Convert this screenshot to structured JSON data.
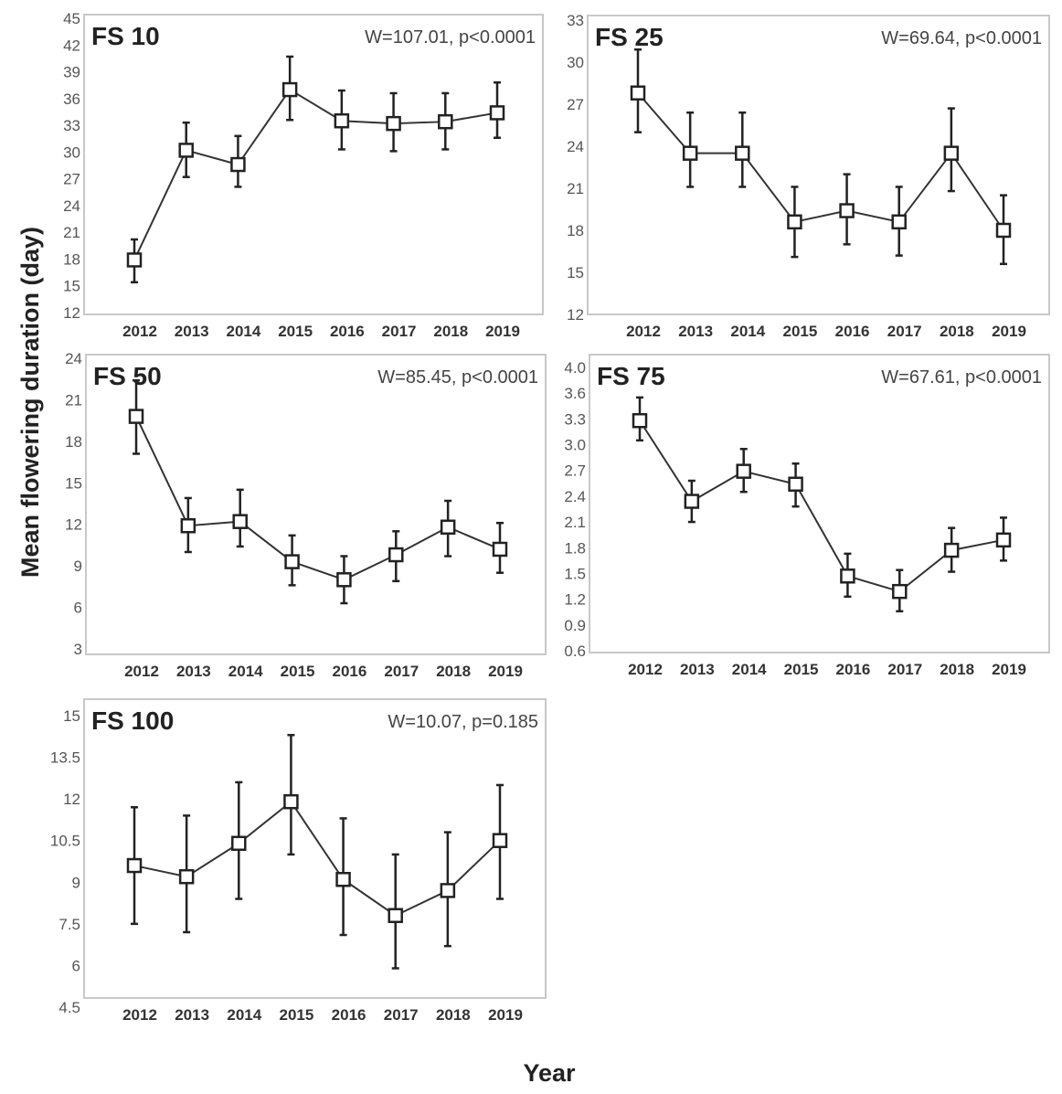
{
  "figure": {
    "ylabel": "Mean flowering duration (day)",
    "xlabel": "Year"
  },
  "chart_data": [
    {
      "type": "line",
      "title": "FS 10",
      "annotation": "W=107.01, p<0.0001",
      "categories": [
        "2012",
        "2013",
        "2014",
        "2015",
        "2016",
        "2017",
        "2018",
        "2019"
      ],
      "values": [
        17.9,
        30.2,
        28.6,
        37.0,
        33.5,
        33.2,
        33.4,
        34.4
      ],
      "error_low": [
        15.4,
        27.2,
        26.1,
        33.6,
        30.3,
        30.1,
        30.3,
        31.6
      ],
      "error_high": [
        20.2,
        33.3,
        31.8,
        40.7,
        36.9,
        36.6,
        36.6,
        37.8
      ],
      "yticks": [
        "12",
        "15",
        "18",
        "21",
        "24",
        "27",
        "30",
        "33",
        "36",
        "39",
        "42",
        "45"
      ],
      "ylim": [
        12,
        45
      ],
      "marker": "open-square",
      "grid": false
    },
    {
      "type": "line",
      "title": "FS 25",
      "annotation": "W=69.64, p<0.0001",
      "categories": [
        "2012",
        "2013",
        "2014",
        "2015",
        "2016",
        "2017",
        "2018",
        "2019"
      ],
      "values": [
        27.8,
        23.5,
        23.5,
        18.6,
        19.4,
        18.6,
        23.5,
        18.0
      ],
      "error_low": [
        25.0,
        21.1,
        21.1,
        16.1,
        17.0,
        16.2,
        20.8,
        15.6
      ],
      "error_high": [
        30.9,
        26.4,
        26.4,
        21.1,
        22.0,
        21.1,
        26.7,
        20.5
      ],
      "yticks": [
        "12",
        "15",
        "18",
        "21",
        "24",
        "27",
        "30",
        "33"
      ],
      "ylim": [
        12,
        33
      ],
      "marker": "open-square",
      "grid": false
    },
    {
      "type": "line",
      "title": "FS 50",
      "annotation": "W=85.45, p<0.0001",
      "categories": [
        "2012",
        "2013",
        "2014",
        "2015",
        "2016",
        "2017",
        "2018",
        "2019"
      ],
      "values": [
        19.8,
        11.9,
        12.2,
        9.3,
        8.0,
        9.8,
        11.8,
        10.2
      ],
      "error_low": [
        17.1,
        10.0,
        10.4,
        7.6,
        6.3,
        7.9,
        9.7,
        8.5
      ],
      "error_high": [
        22.4,
        13.9,
        14.5,
        11.2,
        9.7,
        11.5,
        13.7,
        12.1
      ],
      "yticks": [
        "3",
        "6",
        "9",
        "12",
        "15",
        "18",
        "21",
        "24"
      ],
      "ylim": [
        3,
        24
      ],
      "marker": "open-square",
      "grid": false
    },
    {
      "type": "line",
      "title": "FS 75",
      "annotation": "W=67.61, p<0.0001",
      "categories": [
        "2012",
        "2013",
        "2014",
        "2015",
        "2016",
        "2017",
        "2018",
        "2019"
      ],
      "values": [
        3.28,
        2.34,
        2.69,
        2.54,
        1.47,
        1.29,
        1.77,
        1.89
      ],
      "error_low": [
        3.05,
        2.1,
        2.45,
        2.28,
        1.23,
        1.06,
        1.52,
        1.65
      ],
      "error_high": [
        3.55,
        2.58,
        2.95,
        2.78,
        1.73,
        1.54,
        2.03,
        2.15
      ],
      "yticks": [
        "0.6",
        "0.9",
        "1.2",
        "1.5",
        "1.8",
        "2.1",
        "2.4",
        "2.7",
        "3.0",
        "3.3",
        "3.6",
        "4.0"
      ],
      "ylim": [
        0.6,
        3.9
      ],
      "marker": "open-square",
      "grid": false
    },
    {
      "type": "line",
      "title": "FS 100",
      "annotation": "W=10.07, p=0.185",
      "categories": [
        "2012",
        "2013",
        "2014",
        "2015",
        "2016",
        "2017",
        "2018",
        "2019"
      ],
      "values": [
        9.6,
        9.2,
        10.4,
        11.9,
        9.1,
        7.8,
        8.7,
        10.5
      ],
      "error_low": [
        7.5,
        7.2,
        8.4,
        10.0,
        7.1,
        5.9,
        6.7,
        8.4
      ],
      "error_high": [
        11.7,
        11.4,
        12.6,
        14.3,
        11.3,
        10.0,
        10.8,
        12.5
      ],
      "yticks": [
        "4.5",
        "6",
        "7.5",
        "9",
        "10.5",
        "12",
        "13.5",
        "15"
      ],
      "ylim": [
        4.5,
        15
      ],
      "marker": "open-square",
      "grid": false
    }
  ]
}
